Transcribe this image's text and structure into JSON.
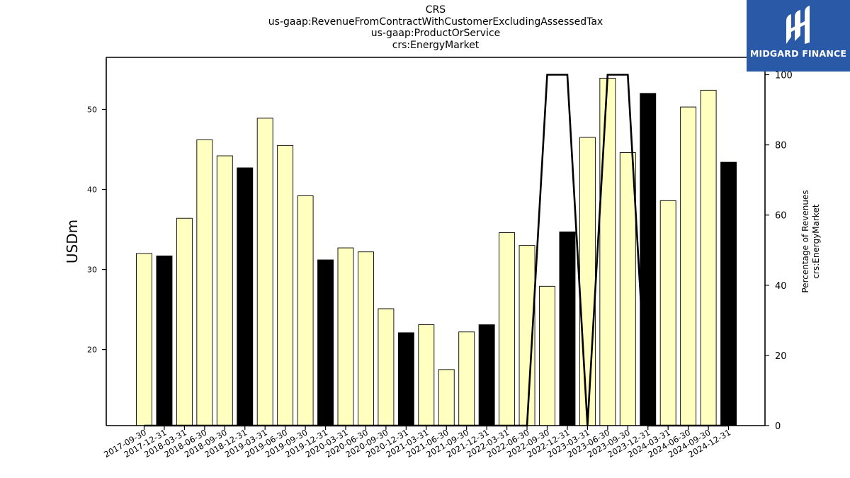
{
  "title_lines": [
    "CRS",
    "us-gaap:RevenueFromContractWithCustomerExcludingAssessedTax",
    "us-gaap:ProductOrService",
    "crs:EnergyMarket"
  ],
  "logo": {
    "text": "MIDGARD FINANCE",
    "bg_color": "#2a59a8"
  },
  "colors": {
    "bar_light": "#ffffc0",
    "bar_dark": "#000000",
    "line": "#000000"
  },
  "chart_data": {
    "type": "bar",
    "categories": [
      "2017-09-30",
      "2017-12-31",
      "2018-03-31",
      "2018-06-30",
      "2018-09-30",
      "2018-12-31",
      "2019-03-31",
      "2019-06-30",
      "2019-09-30",
      "2019-12-31",
      "2020-03-31",
      "2020-06-30",
      "2020-09-30",
      "2020-12-31",
      "2021-03-31",
      "2021-06-30",
      "2021-09-30",
      "2021-12-31",
      "2022-03-31",
      "2022-06-30",
      "2022-09-30",
      "2022-12-31",
      "2023-03-31",
      "2023-06-30",
      "2023-09-30",
      "2023-12-31",
      "2024-03-31",
      "2024-06-30",
      "2024-09-30",
      "2024-12-31"
    ],
    "series": [
      {
        "values": [
          32.0,
          31.7,
          36.4,
          46.2,
          44.2,
          42.7,
          48.9,
          45.5,
          39.2,
          31.2,
          32.7,
          32.2,
          25.1,
          22.1,
          23.1,
          17.5,
          22.2,
          23.1,
          34.6,
          33.0,
          27.9,
          34.7,
          46.5,
          53.9,
          44.6,
          52.0,
          38.6,
          50.3,
          52.4,
          43.4
        ],
        "highlight": [
          false,
          true,
          false,
          false,
          false,
          true,
          false,
          false,
          false,
          true,
          false,
          false,
          false,
          true,
          false,
          false,
          false,
          true,
          false,
          false,
          false,
          true,
          false,
          false,
          false,
          true,
          false,
          false,
          false,
          true
        ]
      },
      {
        "axis": "right",
        "type": "line",
        "values": [
          0,
          0,
          0,
          0,
          0,
          0,
          0,
          0,
          0,
          0,
          0,
          0,
          0,
          0,
          0,
          0,
          0,
          0,
          0,
          0,
          100,
          100,
          0,
          100,
          100,
          0,
          0,
          0,
          0,
          0
        ]
      }
    ],
    "ylabel": "USDm",
    "y2label_lines": [
      "Percentage of Revenues",
      "crs:EnergyMarket"
    ],
    "ylim": [
      10.5,
      56.5
    ],
    "yticks": [
      20,
      30,
      40,
      50
    ],
    "y2lim": [
      0,
      100
    ],
    "y2ticks": [
      0,
      20,
      40,
      60,
      80,
      100
    ]
  }
}
